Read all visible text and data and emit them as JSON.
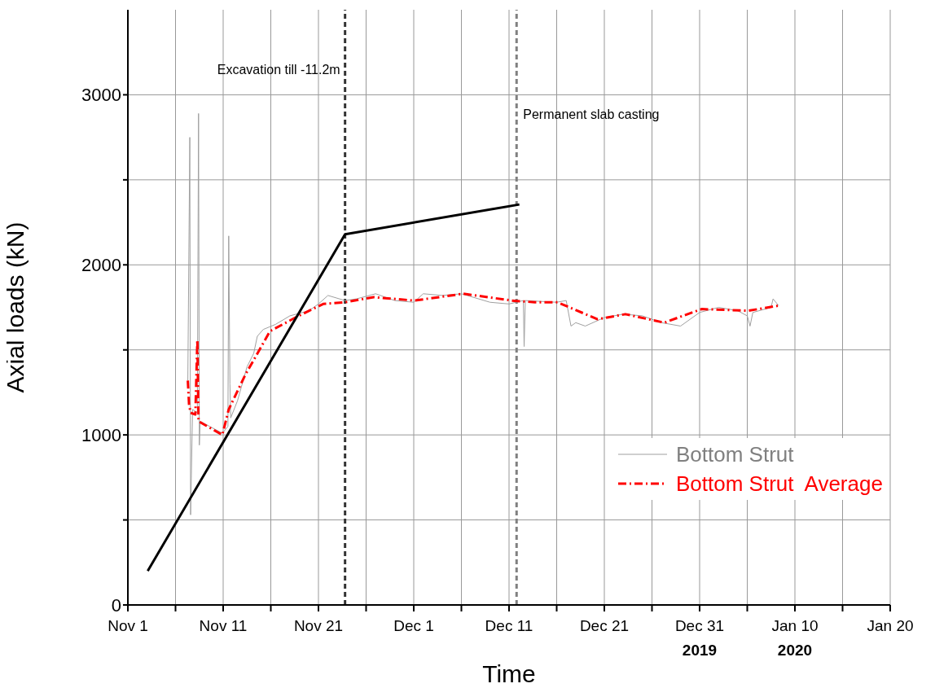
{
  "chart_data": {
    "type": "line",
    "xlabel": "Time",
    "ylabel": "Axial loads (kN)",
    "xlim": [
      "2019-11-01",
      "2020-01-20"
    ],
    "xticks": [
      {
        "value": "2019-11-01",
        "label": "Nov 1"
      },
      {
        "value": "2019-11-06",
        "label": null
      },
      {
        "value": "2019-11-11",
        "label": "Nov 11"
      },
      {
        "value": "2019-11-16",
        "label": null
      },
      {
        "value": "2019-11-21",
        "label": "Nov 21"
      },
      {
        "value": "2019-11-26",
        "label": null
      },
      {
        "value": "2019-12-01",
        "label": "Dec 1"
      },
      {
        "value": "2019-12-06",
        "label": null
      },
      {
        "value": "2019-12-11",
        "label": "Dec 11"
      },
      {
        "value": "2019-12-16",
        "label": null
      },
      {
        "value": "2019-12-21",
        "label": "Dec 21"
      },
      {
        "value": "2019-12-26",
        "label": null
      },
      {
        "value": "2019-12-31",
        "label": "Dec 31\n2019"
      },
      {
        "value": "2020-01-05",
        "label": null
      },
      {
        "value": "2020-01-10",
        "label": "Jan 10\n2020"
      },
      {
        "value": "2020-01-15",
        "label": null
      },
      {
        "value": "2020-01-20",
        "label": "Jan 20"
      }
    ],
    "ylim": [
      0,
      3500
    ],
    "yticks": [
      0,
      {
        "value": 500,
        "label": null
      },
      1000,
      {
        "value": 1500,
        "label": null
      },
      2000,
      {
        "value": 2500,
        "label": null
      },
      3000
    ],
    "grid": true,
    "legend": "right",
    "marker": "none",
    "ref_lines": [
      {
        "axis": "x",
        "value": "2019-11-23T19:00",
        "label": "Excavation till -11.2m",
        "color": "#333333",
        "line_style": "dashed"
      },
      {
        "axis": "x",
        "value": "2019-12-11T19:00",
        "label": "Permanent slab casting",
        "color": "#808080",
        "line_style": "dashed"
      }
    ],
    "series": [
      {
        "name": "Bottom Strut",
        "color": "#a0a0a0",
        "line_style": "solid",
        "x": [
          "2019-11-07T07:00",
          "2019-11-07T12:00",
          "2019-11-07T14:00",
          "2019-11-07T19:00",
          "2019-11-08T07:00",
          "2019-11-08T10:00",
          "2019-11-08T12:00",
          "2019-11-08T14:00",
          "2019-11-10T22:00",
          "2019-11-11T12:00",
          "2019-11-11T14:00",
          "2019-11-11T17:00",
          "2019-11-11T19:00",
          "2019-11-12T12:00",
          "2019-11-13T12:00",
          "2019-11-14T05:00",
          "2019-11-14T14:00",
          "2019-11-15T05:00",
          "2019-11-16T12:00",
          "2019-11-18T00:00",
          "2019-11-20T00:00",
          "2019-11-21T00:00",
          "2019-11-22T00:00",
          "2019-11-23T19:00",
          "2019-11-25T00:00",
          "2019-11-27T00:00",
          "2019-11-29T00:00",
          "2019-12-01T00:00",
          "2019-12-02T00:00",
          "2019-12-04T00:00",
          "2019-12-06T00:00",
          "2019-12-09T00:00",
          "2019-12-11T00:00",
          "2019-12-12T12:00",
          "2019-12-12T14:00",
          "2019-12-12T17:00",
          "2019-12-16T00:00",
          "2019-12-17T00:00",
          "2019-12-17T12:00",
          "2019-12-18T00:00",
          "2019-12-19T00:00",
          "2019-12-21T00:00",
          "2019-12-23T00:00",
          "2019-12-25T00:00",
          "2019-12-27T00:00",
          "2019-12-29T00:00",
          "2019-12-31T00:00",
          "2020-01-02T00:00",
          "2020-01-04T00:00",
          "2020-01-05T00:00",
          "2020-01-05T07:00",
          "2020-01-05T14:00",
          "2020-01-07T12:00",
          "2020-01-07T17:00",
          "2020-01-08T07:00"
        ],
        "values": [
          1320,
          2750,
          530,
          1150,
          1130,
          2890,
          940,
          1080,
          1010,
          1050,
          2170,
          1300,
          1100,
          1200,
          1400,
          1480,
          1580,
          1620,
          1650,
          1700,
          1730,
          1770,
          1820,
          1790,
          1800,
          1830,
          1790,
          1780,
          1830,
          1820,
          1830,
          1780,
          1770,
          1790,
          1520,
          1790,
          1780,
          1790,
          1640,
          1660,
          1640,
          1690,
          1710,
          1700,
          1660,
          1640,
          1720,
          1750,
          1730,
          1700,
          1640,
          1720,
          1750,
          1800,
          1760
        ]
      },
      {
        "name": "Bottom Strut  Average",
        "color": "#ff0000",
        "line_style": "dashed",
        "x": [
          "2019-11-07T07:00",
          "2019-11-07T10:00",
          "2019-11-07T14:00",
          "2019-11-08T02:00",
          "2019-11-08T07:00",
          "2019-11-08T10:00",
          "2019-11-10T22:00",
          "2019-11-11T14:00",
          "2019-11-13T07:00",
          "2019-11-15T22:00",
          "2019-11-18T22:00",
          "2019-11-21T12:00",
          "2019-11-23T19:00",
          "2019-11-26T19:00",
          "2019-12-01T02:00",
          "2019-12-06T05:00",
          "2019-12-11T07:00",
          "2019-12-13T17:00",
          "2019-12-16T02:00",
          "2019-12-20T07:00",
          "2019-12-23T05:00",
          "2019-12-27T07:00",
          "2019-12-31T05:00",
          "2020-01-05T02:00",
          "2020-01-08T07:00"
        ],
        "values": [
          1320,
          1180,
          1130,
          1120,
          1560,
          1080,
          1000,
          1150,
          1350,
          1610,
          1700,
          1770,
          1780,
          1810,
          1790,
          1830,
          1790,
          1780,
          1780,
          1680,
          1710,
          1660,
          1740,
          1730,
          1760
        ]
      },
      {
        "color": "#000000",
        "line_style": "solid",
        "x": [
          "2019-11-03T02:00",
          "2019-11-23T19:00",
          "2019-12-12T02:00"
        ],
        "values": [
          200,
          2180,
          2355
        ]
      }
    ]
  }
}
